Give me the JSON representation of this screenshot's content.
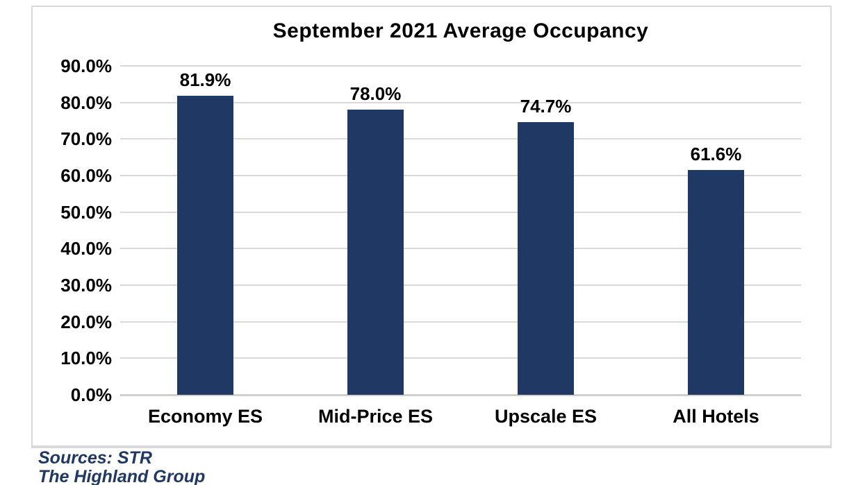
{
  "chart_data": {
    "type": "bar",
    "title": "September 2021 Average Occupancy",
    "categories": [
      "Economy ES",
      "Mid-Price ES",
      "Upscale ES",
      "All Hotels"
    ],
    "values": [
      81.9,
      78.0,
      74.7,
      61.6
    ],
    "value_labels": [
      "81.9%",
      "78.0%",
      "74.7%",
      "61.6%"
    ],
    "xlabel": "",
    "ylabel": "",
    "ylim": [
      0,
      90
    ],
    "yticks": [
      0,
      10,
      20,
      30,
      40,
      50,
      60,
      70,
      80,
      90
    ],
    "ytick_labels": [
      "0.0%",
      "10.0%",
      "20.0%",
      "30.0%",
      "40.0%",
      "50.0%",
      "60.0%",
      "70.0%",
      "80.0%",
      "90.0%"
    ],
    "grid": "horizontal gridlines on",
    "legend": "none",
    "bar_color": "#1f3864",
    "gridline_color": "#d9d9d9",
    "baseline_color": "#cfcfcf",
    "border_color": "#d9d9d9",
    "text_color": "#000000"
  },
  "footer": {
    "source_line1": "Sources: STR",
    "source_line2": "The Highland Group",
    "color": "#1f3864"
  }
}
